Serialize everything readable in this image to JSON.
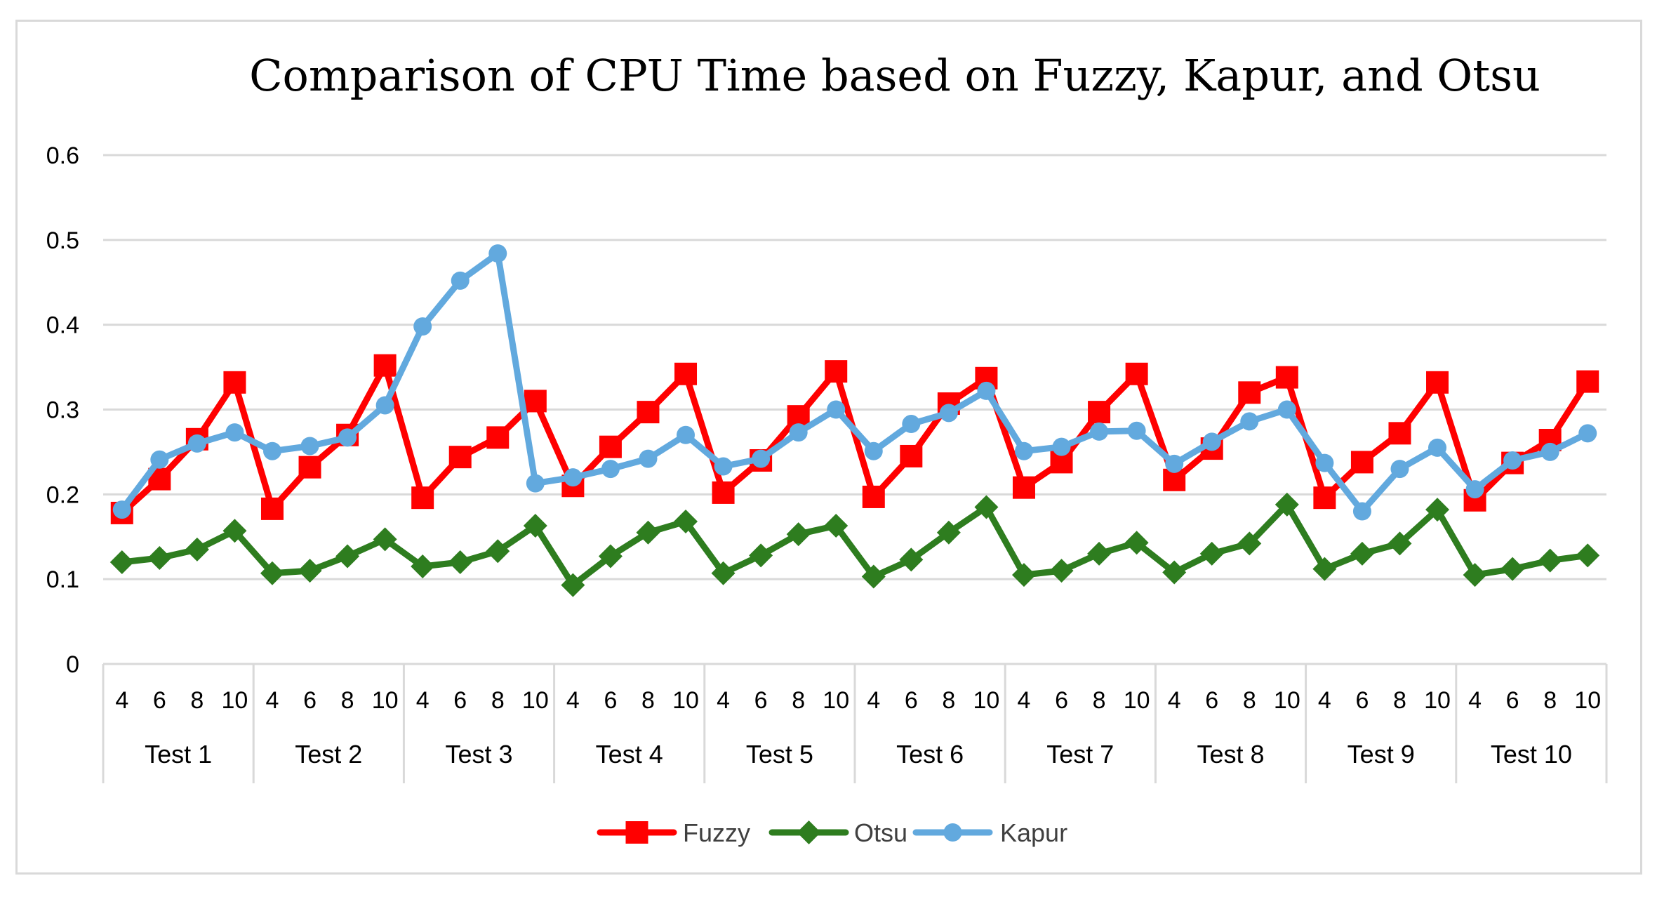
{
  "chart_data": {
    "type": "line",
    "title": "Comparison of CPU Time based on Fuzzy, Kapur, and Otsu",
    "xlabel": "",
    "ylabel": "",
    "ylim": [
      0,
      0.6
    ],
    "y_ticks": [
      "0",
      "0.1",
      "0.2",
      "0.3",
      "0.4",
      "0.5",
      "0.6"
    ],
    "grid": true,
    "legend_position": "bottom",
    "groups": [
      "Test 1",
      "Test 2",
      "Test 3",
      "Test 4",
      "Test 5",
      "Test 6",
      "Test 7",
      "Test 8",
      "Test 9",
      "Test 10"
    ],
    "sub_categories": [
      "4",
      "6",
      "8",
      "10"
    ],
    "series": [
      {
        "name": "Fuzzy",
        "color": "#ff0000",
        "marker": "square",
        "values": [
          0.178,
          0.218,
          0.265,
          0.332,
          0.183,
          0.232,
          0.27,
          0.352,
          0.196,
          0.244,
          0.267,
          0.31,
          0.21,
          0.256,
          0.297,
          0.342,
          0.202,
          0.24,
          0.292,
          0.345,
          0.197,
          0.245,
          0.307,
          0.337,
          0.208,
          0.238,
          0.297,
          0.342,
          0.217,
          0.254,
          0.32,
          0.338,
          0.196,
          0.238,
          0.272,
          0.332,
          0.193,
          0.237,
          0.264,
          0.333
        ]
      },
      {
        "name": "Otsu",
        "color": "#2e7d1f",
        "marker": "diamond",
        "values": [
          0.12,
          0.125,
          0.135,
          0.157,
          0.107,
          0.11,
          0.127,
          0.147,
          0.115,
          0.12,
          0.133,
          0.163,
          0.093,
          0.127,
          0.155,
          0.168,
          0.107,
          0.128,
          0.153,
          0.163,
          0.103,
          0.123,
          0.155,
          0.185,
          0.105,
          0.11,
          0.13,
          0.143,
          0.108,
          0.13,
          0.142,
          0.188,
          0.112,
          0.13,
          0.142,
          0.182,
          0.105,
          0.112,
          0.122,
          0.128
        ]
      },
      {
        "name": "Kapur",
        "color": "#62a9de",
        "marker": "circle",
        "values": [
          0.182,
          0.241,
          0.26,
          0.273,
          0.251,
          0.257,
          0.267,
          0.305,
          0.398,
          0.452,
          0.484,
          0.213,
          0.22,
          0.23,
          0.242,
          0.27,
          0.233,
          0.242,
          0.273,
          0.3,
          0.251,
          0.283,
          0.296,
          0.322,
          0.251,
          0.256,
          0.274,
          0.275,
          0.236,
          0.262,
          0.286,
          0.3,
          0.237,
          0.18,
          0.23,
          0.255,
          0.206,
          0.24,
          0.25,
          0.272
        ]
      }
    ]
  }
}
